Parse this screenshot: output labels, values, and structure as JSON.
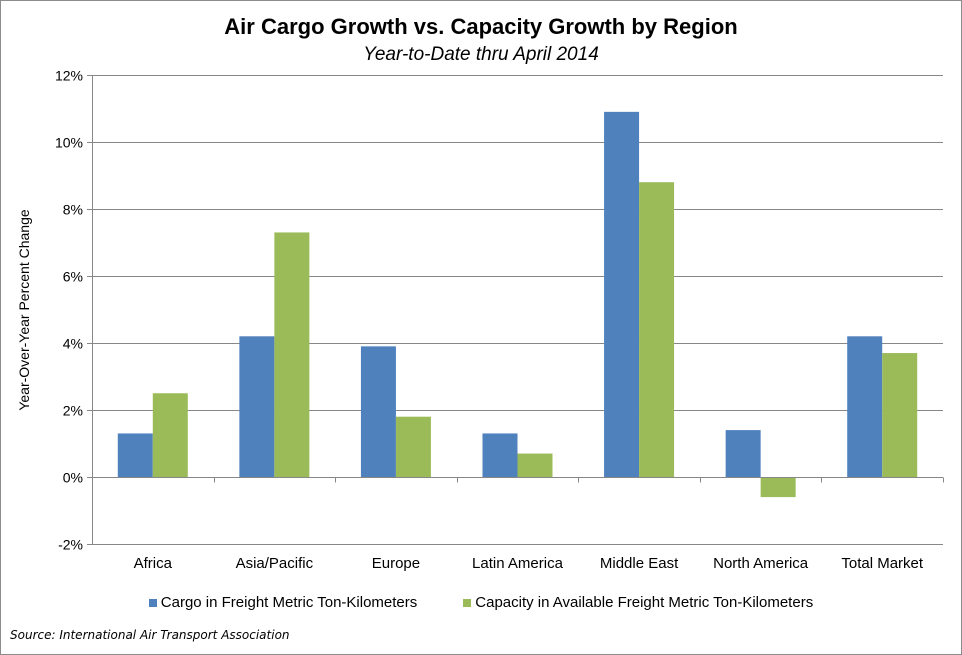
{
  "chart_data": {
    "type": "bar",
    "title": "Air Cargo Growth vs. Capacity Growth by Region",
    "subtitle": "Year-to-Date thru April 2014",
    "xlabel": "",
    "ylabel": "Year-Over-Year  Percent Change",
    "categories": [
      "Africa",
      "Asia/Pacific",
      "Europe",
      "Latin America",
      "Middle East",
      "North America",
      "Total Market"
    ],
    "series": [
      {
        "name": "Cargo in Freight Metric Ton-Kilometers",
        "color": "#4F81BD",
        "values": [
          1.3,
          4.2,
          3.9,
          1.3,
          10.9,
          1.4,
          4.2
        ]
      },
      {
        "name": "Capacity in Available Freight Metric Ton-Kilometers",
        "color": "#9BBB59",
        "values": [
          2.5,
          7.3,
          1.8,
          0.7,
          8.8,
          -0.6,
          3.7
        ]
      }
    ],
    "ylim": [
      -2,
      12
    ],
    "yticks": [
      -2,
      0,
      2,
      4,
      6,
      8,
      10,
      12
    ],
    "ytick_labels": [
      "-2%",
      "0%",
      "2%",
      "4%",
      "6%",
      "8%",
      "10%",
      "12%"
    ],
    "grid": true,
    "legend_position": "bottom",
    "source": "Source: International Air Transport Association"
  }
}
